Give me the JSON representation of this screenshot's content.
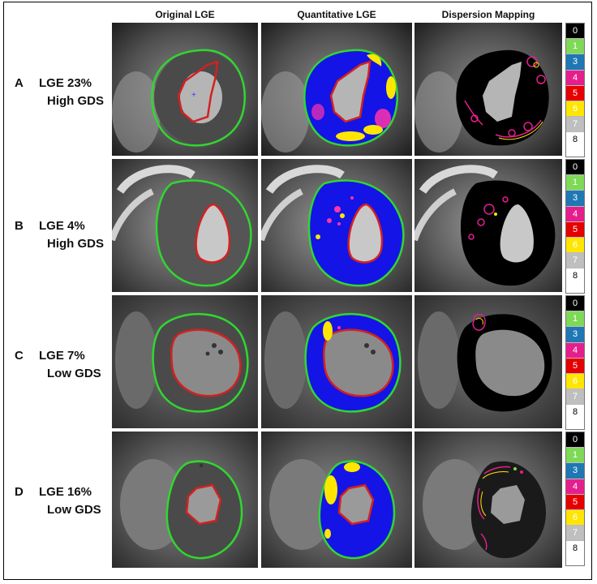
{
  "headers": {
    "col1": "Original LGE",
    "col2": "Quantitative LGE",
    "col3": "Dispersion Mapping"
  },
  "rows": [
    {
      "letter": "A",
      "line1": "LGE 23%",
      "line2": "High GDS"
    },
    {
      "letter": "B",
      "line1": "LGE 4%",
      "line2": "High GDS"
    },
    {
      "letter": "C",
      "line1": "LGE 7%",
      "line2": "Low GDS"
    },
    {
      "letter": "D",
      "line1": "LGE 16%",
      "line2": "Low GDS"
    }
  ],
  "legend": {
    "values": [
      "0",
      "1",
      "3",
      "4",
      "5",
      "6",
      "7",
      "8"
    ],
    "colors": [
      "#000000",
      "#7ed957",
      "#1f77b4",
      "#e61e8c",
      "#e60000",
      "#ffe600",
      "#bfbfbf",
      "#ffffff"
    ],
    "text_colors": [
      "#ffffff",
      "#ffffff",
      "#ffffff",
      "#ffffff",
      "#ffffff",
      "#ffffff",
      "#ffffff",
      "#000000"
    ]
  },
  "colors": {
    "epicardial_contour": "#2fd82f",
    "endocardial_contour": "#d42020",
    "myocardium_fill": "#1414e6",
    "enhancement": "#ffe600",
    "dispersion_outline": "#e61e8c"
  }
}
